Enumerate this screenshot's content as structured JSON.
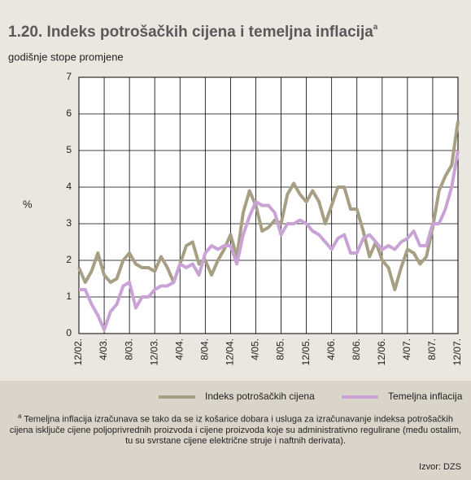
{
  "chart_data": {
    "type": "line",
    "title": "1.20. Indeks potrošačkih cijena i temeljna inflacija",
    "title_marker": "a",
    "subtitle": "godišnje stope promjene",
    "y_label": "%",
    "categories": [
      "12/02.",
      null,
      null,
      null,
      "4/03.",
      null,
      null,
      null,
      "8/03.",
      null,
      null,
      null,
      "12/03.",
      null,
      null,
      null,
      "4/04.",
      null,
      null,
      null,
      "8/04.",
      null,
      null,
      null,
      "12/04.",
      null,
      null,
      null,
      "4/05.",
      null,
      null,
      null,
      "8/05.",
      null,
      null,
      null,
      "12/05.",
      null,
      null,
      null,
      "4/06.",
      null,
      null,
      null,
      "8/06.",
      null,
      null,
      null,
      "12/06.",
      null,
      null,
      null,
      "4/07.",
      null,
      null,
      null,
      "8/07.",
      null,
      null,
      null,
      "12/07."
    ],
    "series": [
      {
        "name": "Indeks potrošačkih cijena",
        "color": "#a69f84",
        "values": [
          1.8,
          1.4,
          1.7,
          2.2,
          1.6,
          1.4,
          1.5,
          2.0,
          2.2,
          1.9,
          1.8,
          1.8,
          1.7,
          2.1,
          1.8,
          1.4,
          1.9,
          2.4,
          2.5,
          1.9,
          2.0,
          1.6,
          2.0,
          2.3,
          2.7,
          2.1,
          3.3,
          3.9,
          3.5,
          2.8,
          2.9,
          3.1,
          3.0,
          3.8,
          4.1,
          3.8,
          3.6,
          3.9,
          3.6,
          3.0,
          3.5,
          4.0,
          4.0,
          3.4,
          3.4,
          2.8,
          2.1,
          2.5,
          2.0,
          1.8,
          1.2,
          1.8,
          2.3,
          2.2,
          1.9,
          2.1,
          2.9,
          3.9,
          4.3,
          4.6,
          5.8
        ]
      },
      {
        "name": "Temeljna inflacija",
        "color": "#c9a3d6",
        "values": [
          1.2,
          1.2,
          0.8,
          0.5,
          0.1,
          0.6,
          0.8,
          1.3,
          1.4,
          0.7,
          1.0,
          1.0,
          1.2,
          1.3,
          1.3,
          1.4,
          1.9,
          1.8,
          1.9,
          1.6,
          2.2,
          2.4,
          2.3,
          2.4,
          2.4,
          1.9,
          2.7,
          3.2,
          3.6,
          3.5,
          3.5,
          3.3,
          2.7,
          3.0,
          3.0,
          3.1,
          3.0,
          2.8,
          2.7,
          2.5,
          2.3,
          2.6,
          2.7,
          2.2,
          2.2,
          2.6,
          2.7,
          2.5,
          2.3,
          2.4,
          2.3,
          2.5,
          2.6,
          2.8,
          2.4,
          2.4,
          3.0,
          3.0,
          3.4,
          4.0,
          5.0
        ]
      }
    ],
    "ylim": [
      0,
      7
    ],
    "yticks": [
      0,
      1,
      2,
      3,
      4,
      5,
      6,
      7
    ],
    "grid": true,
    "legend": "bottom",
    "footnote_marker": "a",
    "footnote": "Temeljna inflacija izračunava se tako da se iz košarice dobara i usluga za izračunavanje indeksa potrošačkih cijena isključe cijene poljoprivrednih proizvoda i cijene proizvoda koje su administrativno regulirane (među ostalim, tu su svrstane cijene električne struje i naftnih derivata).",
    "source": "Izvor: DZS"
  }
}
